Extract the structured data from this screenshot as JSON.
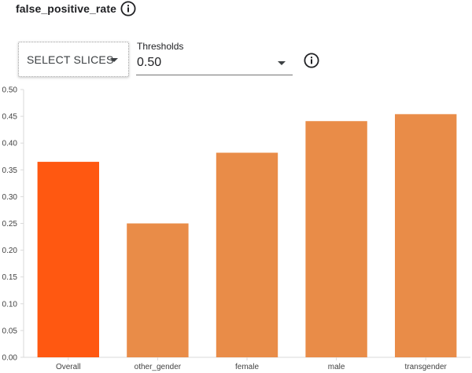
{
  "header": {
    "title": "false_positive_rate",
    "info_icon": "info-icon"
  },
  "controls": {
    "slices_button_label": "SELECT SLICES",
    "thresholds_label": "Thresholds",
    "threshold_value": "0.50",
    "dropdown_icon": "arrow-drop-down-icon",
    "info_icon": "info-icon"
  },
  "chart_data": {
    "type": "bar",
    "categories": [
      "Overall",
      "other_gender",
      "female",
      "male",
      "transgender"
    ],
    "values": [
      0.365,
      0.25,
      0.382,
      0.441,
      0.454
    ],
    "colors": [
      "#ff5811",
      "#e98c48",
      "#e98c48",
      "#e98c48",
      "#e98c48"
    ],
    "ylim": [
      0,
      0.5
    ],
    "yticks": [
      "0.00",
      "0.05",
      "0.10",
      "0.15",
      "0.20",
      "0.25",
      "0.30",
      "0.35",
      "0.40",
      "0.45",
      "0.50"
    ],
    "xlabel": "",
    "ylabel": "",
    "grid": false
  }
}
